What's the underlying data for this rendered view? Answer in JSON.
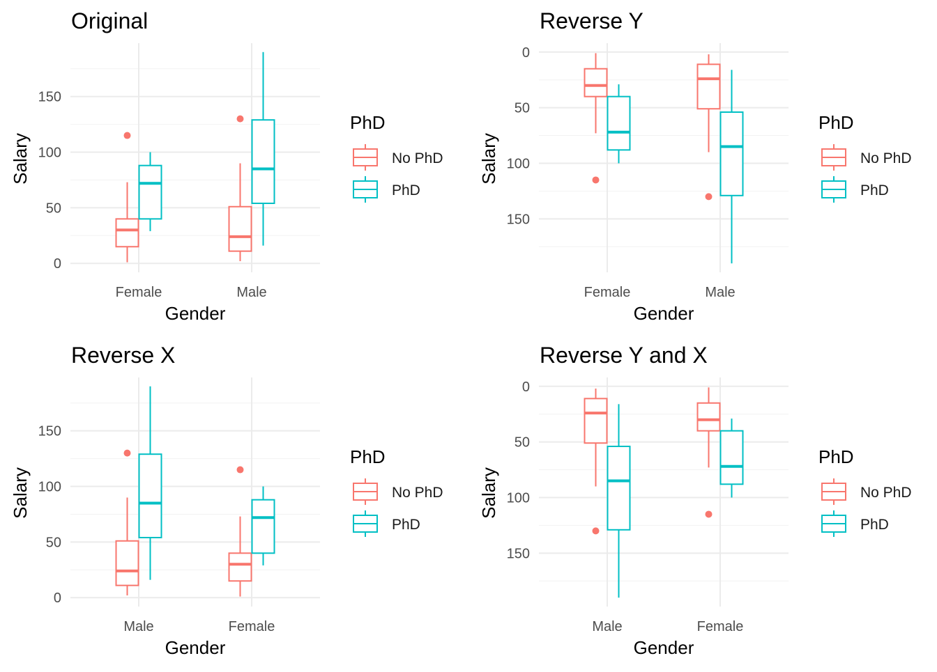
{
  "colors": {
    "no_phd": "#F8766D",
    "phd": "#00BFC4"
  },
  "chart_data": [
    {
      "type": "boxplot",
      "title": "Original",
      "xlabel": "Gender",
      "ylabel": "Salary",
      "categories": [
        "Female",
        "Male"
      ],
      "y_reversed": false,
      "ylim": [
        -8,
        198
      ],
      "y_ticks": [
        0,
        50,
        100,
        150
      ],
      "legend": {
        "title": "PhD",
        "position": "right",
        "entries": [
          "No PhD",
          "PhD"
        ]
      },
      "series": [
        {
          "name": "No PhD",
          "boxes": [
            {
              "category": "Female",
              "whisker_low": 1,
              "q1": 15,
              "median": 30,
              "q3": 40,
              "whisker_high": 73,
              "outliers": [
                115
              ]
            },
            {
              "category": "Male",
              "whisker_low": 2,
              "q1": 11,
              "median": 24,
              "q3": 51,
              "whisker_high": 90,
              "outliers": [
                130
              ]
            }
          ]
        },
        {
          "name": "PhD",
          "boxes": [
            {
              "category": "Female",
              "whisker_low": 29,
              "q1": 40,
              "median": 72,
              "q3": 88,
              "whisker_high": 100,
              "outliers": []
            },
            {
              "category": "Male",
              "whisker_low": 16,
              "q1": 54,
              "median": 85,
              "q3": 129,
              "whisker_high": 190,
              "outliers": []
            }
          ]
        }
      ]
    },
    {
      "type": "boxplot",
      "title": "Reverse Y",
      "xlabel": "Gender",
      "ylabel": "Salary",
      "categories": [
        "Female",
        "Male"
      ],
      "y_reversed": true,
      "ylim": [
        -8,
        198
      ],
      "y_ticks": [
        0,
        50,
        100,
        150
      ],
      "legend": {
        "title": "PhD",
        "position": "right",
        "entries": [
          "No PhD",
          "PhD"
        ]
      },
      "series": [
        {
          "name": "No PhD",
          "boxes": [
            {
              "category": "Female",
              "whisker_low": 1,
              "q1": 15,
              "median": 30,
              "q3": 40,
              "whisker_high": 73,
              "outliers": [
                115
              ]
            },
            {
              "category": "Male",
              "whisker_low": 2,
              "q1": 11,
              "median": 24,
              "q3": 51,
              "whisker_high": 90,
              "outliers": [
                130
              ]
            }
          ]
        },
        {
          "name": "PhD",
          "boxes": [
            {
              "category": "Female",
              "whisker_low": 29,
              "q1": 40,
              "median": 72,
              "q3": 88,
              "whisker_high": 100,
              "outliers": []
            },
            {
              "category": "Male",
              "whisker_low": 16,
              "q1": 54,
              "median": 85,
              "q3": 129,
              "whisker_high": 190,
              "outliers": []
            }
          ]
        }
      ]
    },
    {
      "type": "boxplot",
      "title": "Reverse X",
      "xlabel": "Gender",
      "ylabel": "Salary",
      "categories": [
        "Male",
        "Female"
      ],
      "y_reversed": false,
      "ylim": [
        -8,
        198
      ],
      "y_ticks": [
        0,
        50,
        100,
        150
      ],
      "legend": {
        "title": "PhD",
        "position": "right",
        "entries": [
          "No PhD",
          "PhD"
        ]
      },
      "series": [
        {
          "name": "No PhD",
          "boxes": [
            {
              "category": "Male",
              "whisker_low": 2,
              "q1": 11,
              "median": 24,
              "q3": 51,
              "whisker_high": 90,
              "outliers": [
                130
              ]
            },
            {
              "category": "Female",
              "whisker_low": 1,
              "q1": 15,
              "median": 30,
              "q3": 40,
              "whisker_high": 73,
              "outliers": [
                115
              ]
            }
          ]
        },
        {
          "name": "PhD",
          "boxes": [
            {
              "category": "Male",
              "whisker_low": 16,
              "q1": 54,
              "median": 85,
              "q3": 129,
              "whisker_high": 190,
              "outliers": []
            },
            {
              "category": "Female",
              "whisker_low": 29,
              "q1": 40,
              "median": 72,
              "q3": 88,
              "whisker_high": 100,
              "outliers": []
            }
          ]
        }
      ]
    },
    {
      "type": "boxplot",
      "title": "Reverse Y and X",
      "xlabel": "Gender",
      "ylabel": "Salary",
      "categories": [
        "Male",
        "Female"
      ],
      "y_reversed": true,
      "ylim": [
        -8,
        198
      ],
      "y_ticks": [
        0,
        50,
        100,
        150
      ],
      "legend": {
        "title": "PhD",
        "position": "right",
        "entries": [
          "No PhD",
          "PhD"
        ]
      },
      "series": [
        {
          "name": "No PhD",
          "boxes": [
            {
              "category": "Male",
              "whisker_low": 2,
              "q1": 11,
              "median": 24,
              "q3": 51,
              "whisker_high": 90,
              "outliers": [
                130
              ]
            },
            {
              "category": "Female",
              "whisker_low": 1,
              "q1": 15,
              "median": 30,
              "q3": 40,
              "whisker_high": 73,
              "outliers": [
                115
              ]
            }
          ]
        },
        {
          "name": "PhD",
          "boxes": [
            {
              "category": "Male",
              "whisker_low": 16,
              "q1": 54,
              "median": 85,
              "q3": 129,
              "whisker_high": 190,
              "outliers": []
            },
            {
              "category": "Female",
              "whisker_low": 29,
              "q1": 40,
              "median": 72,
              "q3": 88,
              "whisker_high": 100,
              "outliers": []
            }
          ]
        }
      ]
    }
  ]
}
